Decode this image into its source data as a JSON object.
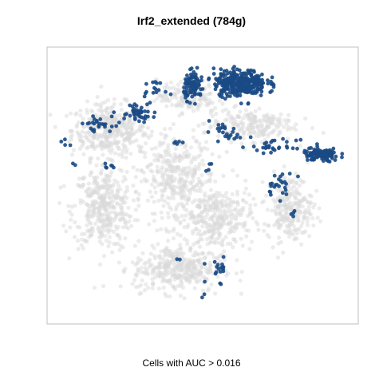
{
  "chart_data": {
    "type": "scatter",
    "title": "Irf2_extended (784g)",
    "subtitle": "",
    "xlabel": "Cells with AUC > 0.016",
    "ylabel": "",
    "xlim": [
      0,
      100
    ],
    "ylim": [
      0,
      100
    ],
    "grid": false,
    "legend": "none",
    "axis_ticks": false,
    "background_points": {
      "color": "#d9d9d9",
      "regions": [
        {
          "center": [
            20,
            70
          ],
          "spread": [
            10,
            8
          ],
          "count": 400
        },
        {
          "center": [
            18,
            42
          ],
          "spread": [
            8,
            12
          ],
          "count": 380
        },
        {
          "center": [
            42,
            52
          ],
          "spread": [
            10,
            14
          ],
          "count": 380
        },
        {
          "center": [
            55,
            38
          ],
          "spread": [
            9,
            10
          ],
          "count": 300
        },
        {
          "center": [
            42,
            20
          ],
          "spread": [
            12,
            7
          ],
          "count": 380
        },
        {
          "center": [
            78,
            42
          ],
          "spread": [
            6,
            10
          ],
          "count": 250
        },
        {
          "center": [
            65,
            72
          ],
          "spread": [
            12,
            5
          ],
          "count": 200
        },
        {
          "center": [
            45,
            82
          ],
          "spread": [
            8,
            5
          ],
          "count": 150
        }
      ]
    },
    "highlight_points": {
      "color": "#1a4a85",
      "label": "Cells with AUC > 0.016",
      "clusters": [
        {
          "center": [
            62,
            87
          ],
          "spread": [
            7,
            4
          ],
          "count": 320
        },
        {
          "center": [
            47,
            86
          ],
          "spread": [
            2.5,
            4
          ],
          "count": 90
        },
        {
          "center": [
            88,
            61
          ],
          "spread": [
            5,
            2
          ],
          "count": 120
        },
        {
          "center": [
            29,
            77
          ],
          "spread": [
            5,
            3
          ],
          "count": 45
        },
        {
          "center": [
            16,
            72
          ],
          "spread": [
            4,
            2
          ],
          "count": 25
        },
        {
          "center": [
            34,
            85
          ],
          "spread": [
            3,
            2
          ],
          "count": 15
        },
        {
          "center": [
            73,
            64
          ],
          "spread": [
            6,
            2
          ],
          "count": 30
        },
        {
          "center": [
            60,
            68
          ],
          "spread": [
            4,
            2
          ],
          "count": 15
        },
        {
          "center": [
            55,
            71
          ],
          "spread": [
            3,
            2
          ],
          "count": 10
        },
        {
          "center": [
            75,
            50
          ],
          "spread": [
            4,
            4
          ],
          "count": 25
        },
        {
          "center": [
            55,
            20
          ],
          "spread": [
            3,
            4
          ],
          "count": 18
        },
        {
          "center": [
            20,
            57
          ],
          "spread": [
            4,
            1
          ],
          "count": 6
        },
        {
          "center": [
            5,
            65
          ],
          "spread": [
            1.5,
            1
          ],
          "count": 4
        },
        {
          "center": [
            8,
            57
          ],
          "spread": [
            1,
            1
          ],
          "count": 2
        },
        {
          "center": [
            42,
            66
          ],
          "spread": [
            2,
            3
          ],
          "count": 5
        },
        {
          "center": [
            52,
            57
          ],
          "spread": [
            2,
            2
          ],
          "count": 4
        },
        {
          "center": [
            42,
            23
          ],
          "spread": [
            1,
            1
          ],
          "count": 2
        },
        {
          "center": [
            50,
            11
          ],
          "spread": [
            1,
            1
          ],
          "count": 2
        },
        {
          "center": [
            79,
            40
          ],
          "spread": [
            1,
            2
          ],
          "count": 4
        }
      ]
    }
  }
}
